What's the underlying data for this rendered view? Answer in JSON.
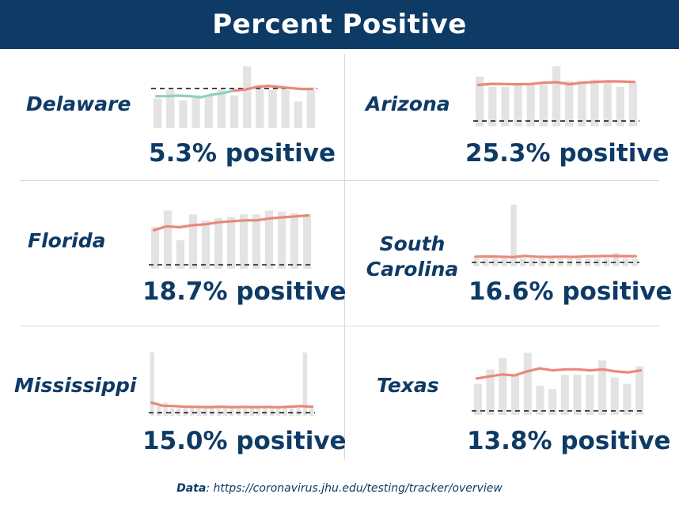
{
  "header": {
    "title": "Percent Positive"
  },
  "footer": {
    "label": "Data",
    "separator": ": ",
    "source": "https://coronavirus.jhu.edu/testing/tracker/overview"
  },
  "colors": {
    "navy": "#0e3a66",
    "bar": "#e3e3e3",
    "line_high": "#e8897a",
    "line_low": "#8fd0bf",
    "threshold": "#1a1a1a"
  },
  "chart_data": [
    {
      "type": "bar+line",
      "state": "Delaware",
      "stat": "5.3% positive",
      "bars": [
        0.48,
        0.62,
        0.45,
        0.53,
        0.53,
        0.62,
        0.53,
        1.0,
        0.7,
        0.62,
        0.62,
        0.43,
        0.66
      ],
      "line": [
        6.2,
        6.2,
        6.3,
        6.2,
        6.0,
        6.5,
        6.8,
        7.3,
        7.5,
        8.0,
        8.2,
        8.0,
        7.8,
        7.6,
        7.6
      ],
      "line_segments": [
        {
          "color_key": "line_low",
          "from": 0,
          "to": 7
        },
        {
          "color_key": "line_high",
          "from": 7,
          "to": 14
        }
      ],
      "threshold": 7.7,
      "ylim": [
        0,
        12
      ]
    },
    {
      "type": "bar+line",
      "state": "Arizona",
      "stat": "25.3% positive",
      "bars": [
        0.83,
        0.66,
        0.66,
        0.7,
        0.7,
        0.7,
        1.0,
        0.76,
        0.76,
        0.78,
        0.73,
        0.66,
        0.73
      ],
      "line": [
        19.8,
        20.4,
        20.3,
        20.2,
        20.3,
        21.0,
        21.3,
        20.2,
        21.0,
        21.5,
        21.8,
        21.7,
        21.5
      ],
      "threshold": 0,
      "ylim": [
        -3,
        30
      ]
    },
    {
      "type": "bar+line",
      "state": "Florida",
      "stat": "18.7% positive",
      "bars": [
        0.66,
        0.92,
        0.45,
        0.86,
        0.76,
        0.8,
        0.82,
        0.86,
        0.86,
        0.92,
        0.9,
        0.88,
        0.86
      ],
      "line": [
        17.5,
        19.5,
        19.0,
        20.0,
        20.5,
        21.5,
        22.0,
        22.5,
        22.5,
        23.5,
        24.0,
        24.5,
        25.0
      ],
      "threshold": 0,
      "ylim": [
        -2,
        30
      ]
    },
    {
      "type": "bar+line",
      "state": "South Carolina",
      "stat": "16.6% positive",
      "bars": [
        0.13,
        0.13,
        0.13,
        0.13,
        1.0,
        0.13,
        0.13,
        0.13,
        0.13,
        0.13,
        0.13,
        0.13,
        0.13,
        0.13,
        0.13,
        0.22,
        0.13,
        0.13
      ],
      "line": [
        3.0,
        3.2,
        3.0,
        2.8,
        3.4,
        3.0,
        2.9,
        3.0,
        2.9,
        3.2,
        3.3,
        3.4,
        3.3,
        3.3
      ],
      "threshold": 0,
      "ylim": [
        -2,
        30
      ]
    },
    {
      "type": "bar+line",
      "state": "Mississippi",
      "stat": "15.0% positive",
      "bars": [
        1.0,
        0.15,
        0.21,
        0.12,
        0.12,
        0.12,
        0.12,
        0.12,
        0.12,
        0.12,
        0.12,
        0.12,
        0.12,
        0.12,
        0.12,
        0.14,
        0.12,
        0.12,
        0.12,
        0.12,
        0.12,
        0.12,
        0.12,
        1.0,
        0.12
      ],
      "line": [
        5.0,
        3.5,
        3.3,
        3.0,
        2.9,
        2.8,
        3.0,
        2.8,
        2.9,
        2.8,
        2.9,
        2.7,
        3.0,
        3.3,
        3.0
      ],
      "threshold": 0,
      "ylim": [
        -1.5,
        30
      ]
    },
    {
      "type": "bar+line",
      "state": "Texas",
      "stat": "13.8% positive",
      "bars": [
        0.48,
        0.7,
        0.88,
        0.62,
        0.96,
        0.45,
        0.4,
        0.62,
        0.62,
        0.62,
        0.84,
        0.58,
        0.48,
        0.75
      ],
      "line": [
        16.0,
        17.0,
        18.0,
        17.5,
        19.5,
        21.0,
        20.0,
        20.5,
        20.5,
        20.0,
        20.5,
        19.5,
        19.0,
        20.0
      ],
      "threshold": 0,
      "ylim": [
        -2,
        30
      ]
    }
  ]
}
